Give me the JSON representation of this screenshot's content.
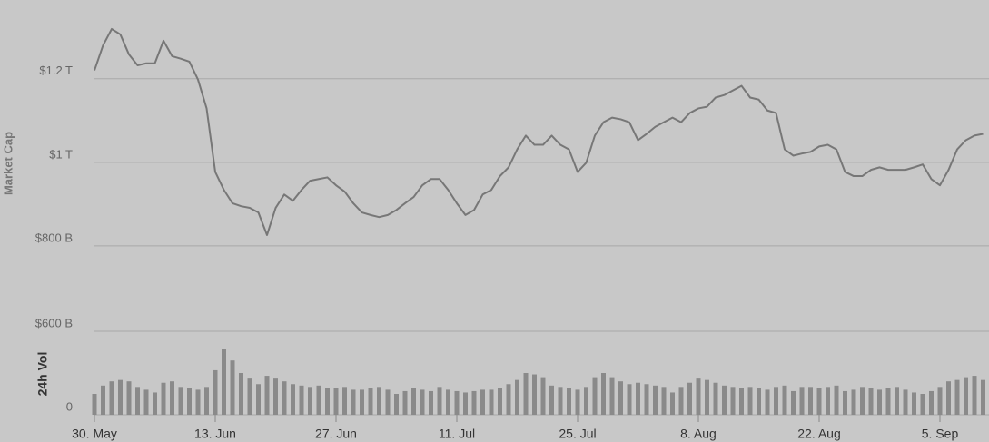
{
  "chart_data": [
    {
      "type": "line",
      "y_label": "Market Cap",
      "x": [
        "05-30",
        "05-31",
        "06-01",
        "06-02",
        "06-03",
        "06-04",
        "06-05",
        "06-06",
        "06-07",
        "06-08",
        "06-09",
        "06-10",
        "06-11",
        "06-12",
        "06-13",
        "06-14",
        "06-15",
        "06-16",
        "06-17",
        "06-18",
        "06-19",
        "06-20",
        "06-21",
        "06-22",
        "06-23",
        "06-24",
        "06-25",
        "06-26",
        "06-27",
        "06-28",
        "06-29",
        "06-30",
        "07-01",
        "07-02",
        "07-03",
        "07-04",
        "07-05",
        "07-06",
        "07-07",
        "07-08",
        "07-09",
        "07-10",
        "07-11",
        "07-12",
        "07-13",
        "07-14",
        "07-15",
        "07-16",
        "07-17",
        "07-18",
        "07-19",
        "07-20",
        "07-21",
        "07-22",
        "07-23",
        "07-24",
        "07-25",
        "07-26",
        "07-27",
        "07-28",
        "07-29",
        "07-30",
        "07-31",
        "08-01",
        "08-02",
        "08-03",
        "08-04",
        "08-05",
        "08-06",
        "08-07",
        "08-08",
        "08-09",
        "08-10",
        "08-11",
        "08-12",
        "08-13",
        "08-14",
        "08-15",
        "08-16",
        "08-17",
        "08-18",
        "08-19",
        "08-20",
        "08-21",
        "08-22",
        "08-23",
        "08-24",
        "08-25",
        "08-26",
        "08-27",
        "08-28",
        "08-29",
        "08-30",
        "08-31",
        "09-01",
        "09-02",
        "09-03",
        "09-04",
        "09-05",
        "09-06",
        "09-07",
        "09-08",
        "09-09",
        "09-10"
      ],
      "series": [
        {
          "color": "#777777",
          "values": [
            1220,
            1280,
            1319,
            1306,
            1258,
            1232,
            1237,
            1237,
            1291,
            1254,
            1248,
            1241,
            1198,
            1129,
            977,
            934,
            902,
            895,
            891,
            880,
            826,
            891,
            923,
            908,
            934,
            956,
            960,
            964,
            945,
            930,
            902,
            880,
            874,
            869,
            874,
            886,
            902,
            917,
            945,
            960,
            960,
            934,
            902,
            874,
            886,
            923,
            934,
            967,
            988,
            1031,
            1064,
            1042,
            1042,
            1064,
            1042,
            1031,
            977,
            999,
            1064,
            1096,
            1107,
            1103,
            1096,
            1053,
            1068,
            1085,
            1096,
            1107,
            1096,
            1118,
            1129,
            1133,
            1155,
            1161,
            1172,
            1183,
            1155,
            1150,
            1124,
            1118,
            1031,
            1016,
            1021,
            1025,
            1038,
            1042,
            1031,
            977,
            967,
            967,
            982,
            988,
            982,
            982,
            982,
            988,
            995,
            960,
            945,
            982,
            1031,
            1053,
            1064,
            1068
          ]
        }
      ],
      "ylim": [
        650,
        1345
      ],
      "yticks": [
        {
          "value": 800,
          "label": "$800 B"
        },
        {
          "value": 1000,
          "label": "$1 T"
        },
        {
          "value": 1200,
          "label": "$1.2 T"
        }
      ],
      "grid": true
    },
    {
      "type": "bar",
      "y_label": "24h Vol",
      "color": "#8a8a8a",
      "x": [
        "05-30",
        "05-31",
        "06-01",
        "06-02",
        "06-03",
        "06-04",
        "06-05",
        "06-06",
        "06-07",
        "06-08",
        "06-09",
        "06-10",
        "06-11",
        "06-12",
        "06-13",
        "06-14",
        "06-15",
        "06-16",
        "06-17",
        "06-18",
        "06-19",
        "06-20",
        "06-21",
        "06-22",
        "06-23",
        "06-24",
        "06-25",
        "06-26",
        "06-27",
        "06-28",
        "06-29",
        "06-30",
        "07-01",
        "07-02",
        "07-03",
        "07-04",
        "07-05",
        "07-06",
        "07-07",
        "07-08",
        "07-09",
        "07-10",
        "07-11",
        "07-12",
        "07-13",
        "07-14",
        "07-15",
        "07-16",
        "07-17",
        "07-18",
        "07-19",
        "07-20",
        "07-21",
        "07-22",
        "07-23",
        "07-24",
        "07-25",
        "07-26",
        "07-27",
        "07-28",
        "07-29",
        "07-30",
        "07-31",
        "08-01",
        "08-02",
        "08-03",
        "08-04",
        "08-05",
        "08-06",
        "08-07",
        "08-08",
        "08-09",
        "08-10",
        "08-11",
        "08-12",
        "08-13",
        "08-14",
        "08-15",
        "08-16",
        "08-17",
        "08-18",
        "08-19",
        "08-20",
        "08-21",
        "08-22",
        "08-23",
        "08-24",
        "08-25",
        "08-26",
        "08-27",
        "08-28",
        "08-29",
        "08-30",
        "08-31",
        "09-01",
        "09-02",
        "09-03",
        "09-04",
        "09-05",
        "09-06",
        "09-07",
        "09-08",
        "09-09",
        "09-10"
      ],
      "values": [
        150,
        210,
        240,
        250,
        240,
        200,
        180,
        160,
        230,
        240,
        200,
        190,
        180,
        200,
        320,
        470,
        390,
        300,
        260,
        220,
        280,
        260,
        240,
        220,
        210,
        200,
        210,
        190,
        190,
        200,
        180,
        180,
        190,
        200,
        180,
        150,
        170,
        190,
        180,
        170,
        200,
        180,
        170,
        160,
        170,
        180,
        180,
        190,
        220,
        250,
        300,
        290,
        270,
        210,
        200,
        190,
        180,
        200,
        270,
        300,
        270,
        240,
        220,
        230,
        220,
        210,
        200,
        160,
        200,
        230,
        260,
        250,
        230,
        210,
        200,
        190,
        200,
        190,
        180,
        200,
        210,
        170,
        200,
        200,
        190,
        200,
        210,
        170,
        180,
        200,
        190,
        180,
        190,
        200,
        180,
        160,
        150,
        170,
        200,
        240,
        250,
        270,
        280,
        250
      ],
      "ylim": [
        0,
        600
      ],
      "yticks": [
        0,
        {
          "value": 600,
          "label": "$600 B"
        }
      ],
      "xticks": [
        {
          "value": "05-30",
          "label": "30. May"
        },
        {
          "value": "06-13",
          "label": "13. Jun"
        },
        {
          "value": "06-27",
          "label": "27. Jun"
        },
        {
          "value": "07-11",
          "label": "11. Jul"
        },
        {
          "value": "07-25",
          "label": "25. Jul"
        },
        {
          "value": "08-08",
          "label": "8. Aug"
        },
        {
          "value": "08-22",
          "label": "22. Aug"
        },
        {
          "value": "09-05",
          "label": "5. Sep"
        }
      ],
      "grid": true
    }
  ]
}
